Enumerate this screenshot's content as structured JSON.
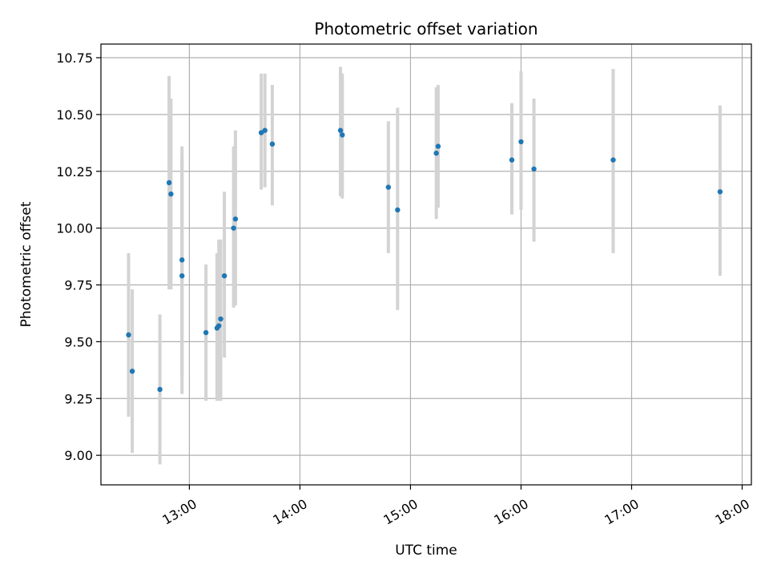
{
  "chart_data": {
    "type": "scatter",
    "title": "Photometric offset variation",
    "xlabel": "UTC time",
    "ylabel": "Photometric offset",
    "x_ticks": [
      "13:00",
      "14:00",
      "15:00",
      "16:00",
      "17:00",
      "18:00"
    ],
    "y_ticks": [
      "9.00",
      "9.25",
      "9.50",
      "9.75",
      "10.00",
      "10.25",
      "10.50",
      "10.75"
    ],
    "xlim": [
      "12:12",
      "18:05"
    ],
    "ylim": [
      8.87,
      10.81
    ],
    "grid": true,
    "marker_color": "#1f77b4",
    "errorbar_color": "#d3d3d3",
    "series": [
      {
        "points": [
          {
            "x": "12:27",
            "y": 9.53,
            "ylow": 9.17,
            "yhigh": 9.89
          },
          {
            "x": "12:29",
            "y": 9.37,
            "ylow": 9.01,
            "yhigh": 9.73
          },
          {
            "x": "12:44",
            "y": 9.29,
            "ylow": 8.96,
            "yhigh": 9.62
          },
          {
            "x": "12:49",
            "y": 10.2,
            "ylow": 9.73,
            "yhigh": 10.67
          },
          {
            "x": "12:50",
            "y": 10.15,
            "ylow": 9.73,
            "yhigh": 10.57
          },
          {
            "x": "12:56",
            "y": 9.79,
            "ylow": 9.27,
            "yhigh": 10.31
          },
          {
            "x": "12:56",
            "y": 9.86,
            "ylow": 9.35,
            "yhigh": 10.36
          },
          {
            "x": "13:09",
            "y": 9.54,
            "ylow": 9.24,
            "yhigh": 9.84
          },
          {
            "x": "13:15",
            "y": 9.56,
            "ylow": 9.24,
            "yhigh": 9.89
          },
          {
            "x": "13:16",
            "y": 9.57,
            "ylow": 9.24,
            "yhigh": 9.95
          },
          {
            "x": "13:17",
            "y": 9.6,
            "ylow": 9.24,
            "yhigh": 9.95
          },
          {
            "x": "13:19",
            "y": 9.79,
            "ylow": 9.43,
            "yhigh": 10.16
          },
          {
            "x": "13:24",
            "y": 10.0,
            "ylow": 9.65,
            "yhigh": 10.36
          },
          {
            "x": "13:25",
            "y": 10.04,
            "ylow": 9.66,
            "yhigh": 10.43
          },
          {
            "x": "13:39",
            "y": 10.42,
            "ylow": 10.17,
            "yhigh": 10.68
          },
          {
            "x": "13:41",
            "y": 10.43,
            "ylow": 10.18,
            "yhigh": 10.68
          },
          {
            "x": "13:45",
            "y": 10.37,
            "ylow": 10.1,
            "yhigh": 10.63
          },
          {
            "x": "14:22",
            "y": 10.43,
            "ylow": 10.14,
            "yhigh": 10.71
          },
          {
            "x": "14:23",
            "y": 10.41,
            "ylow": 10.13,
            "yhigh": 10.68
          },
          {
            "x": "14:48",
            "y": 10.18,
            "ylow": 9.89,
            "yhigh": 10.47
          },
          {
            "x": "14:53",
            "y": 10.08,
            "ylow": 9.64,
            "yhigh": 10.53
          },
          {
            "x": "15:14",
            "y": 10.33,
            "ylow": 10.04,
            "yhigh": 10.62
          },
          {
            "x": "15:15",
            "y": 10.36,
            "ylow": 10.09,
            "yhigh": 10.63
          },
          {
            "x": "15:55",
            "y": 10.3,
            "ylow": 10.06,
            "yhigh": 10.55
          },
          {
            "x": "16:00",
            "y": 10.38,
            "ylow": 10.08,
            "yhigh": 10.69
          },
          {
            "x": "16:07",
            "y": 10.26,
            "ylow": 9.94,
            "yhigh": 10.57
          },
          {
            "x": "16:50",
            "y": 10.3,
            "ylow": 9.89,
            "yhigh": 10.7
          },
          {
            "x": "17:48",
            "y": 10.16,
            "ylow": 9.79,
            "yhigh": 10.54
          }
        ]
      }
    ]
  }
}
